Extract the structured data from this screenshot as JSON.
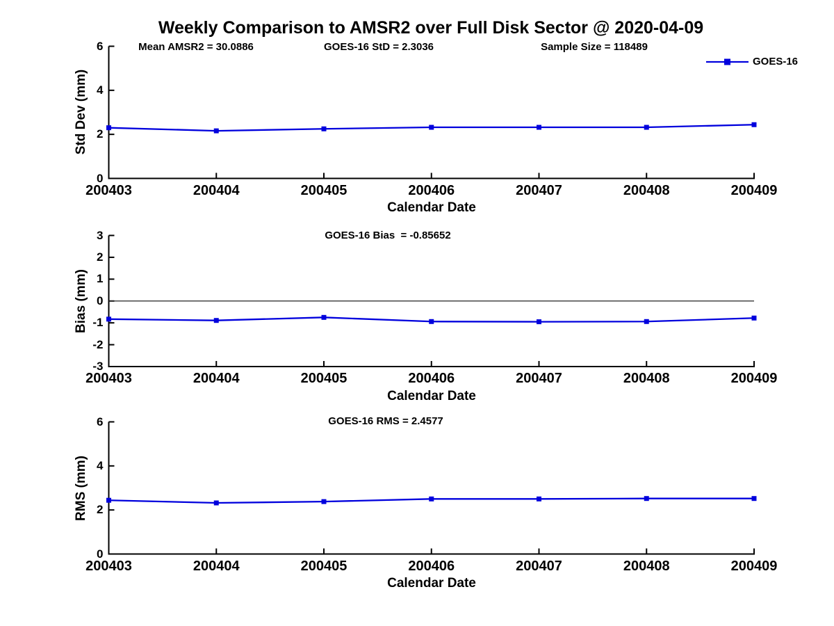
{
  "title": "Weekly Comparison to AMSR2 over Full Disk Sector @ 2020-04-09",
  "legend": {
    "label": "GOES-16"
  },
  "colors": {
    "line": "#0000dd",
    "axis": "#000000",
    "zero_line": "#222222",
    "background": "#ffffff",
    "text": "#000000"
  },
  "stats": {
    "mean_amsr2": 30.0886,
    "goes16_std": 2.3036,
    "sample_size": 118489,
    "goes16_bias": -0.85652,
    "goes16_rms": 2.4577
  },
  "chart_data": [
    {
      "type": "line",
      "panel": "std-dev",
      "annotations": [
        "Mean AMSR2 = 30.0886",
        "GOES-16 StD = 2.3036",
        "Sample Size = 118489"
      ],
      "xlabel": "Calendar Date",
      "ylabel": "Std Dev (mm)",
      "categories": [
        "200403",
        "200404",
        "200405",
        "200406",
        "200407",
        "200408",
        "200409"
      ],
      "series": [
        {
          "name": "GOES-16",
          "values": [
            2.3,
            2.16,
            2.25,
            2.32,
            2.32,
            2.32,
            2.44
          ]
        }
      ],
      "ylim": [
        0,
        6
      ],
      "yticks": [
        0,
        2,
        4,
        6
      ],
      "grid": false,
      "legend_position": "top-right",
      "marker": "square"
    },
    {
      "type": "line",
      "panel": "bias",
      "annotations": [
        "GOES-16 Bias  = -0.85652"
      ],
      "xlabel": "Calendar Date",
      "ylabel": "Bias (mm)",
      "categories": [
        "200403",
        "200404",
        "200405",
        "200406",
        "200407",
        "200408",
        "200409"
      ],
      "series": [
        {
          "name": "GOES-16",
          "values": [
            -0.83,
            -0.89,
            -0.75,
            -0.94,
            -0.95,
            -0.94,
            -0.78
          ]
        }
      ],
      "ylim": [
        -3,
        3
      ],
      "yticks": [
        -3,
        -2,
        -1,
        0,
        1,
        2,
        3
      ],
      "zero_line": true,
      "grid": false,
      "marker": "square"
    },
    {
      "type": "line",
      "panel": "rms",
      "annotations": [
        "GOES-16 RMS = 2.4577"
      ],
      "xlabel": "Calendar Date",
      "ylabel": "RMS (mm)",
      "categories": [
        "200403",
        "200404",
        "200405",
        "200406",
        "200407",
        "200408",
        "200409"
      ],
      "series": [
        {
          "name": "GOES-16",
          "values": [
            2.44,
            2.32,
            2.38,
            2.5,
            2.5,
            2.52,
            2.52
          ]
        }
      ],
      "ylim": [
        0,
        6
      ],
      "yticks": [
        0,
        2,
        4,
        6
      ],
      "grid": false,
      "marker": "square"
    }
  ]
}
